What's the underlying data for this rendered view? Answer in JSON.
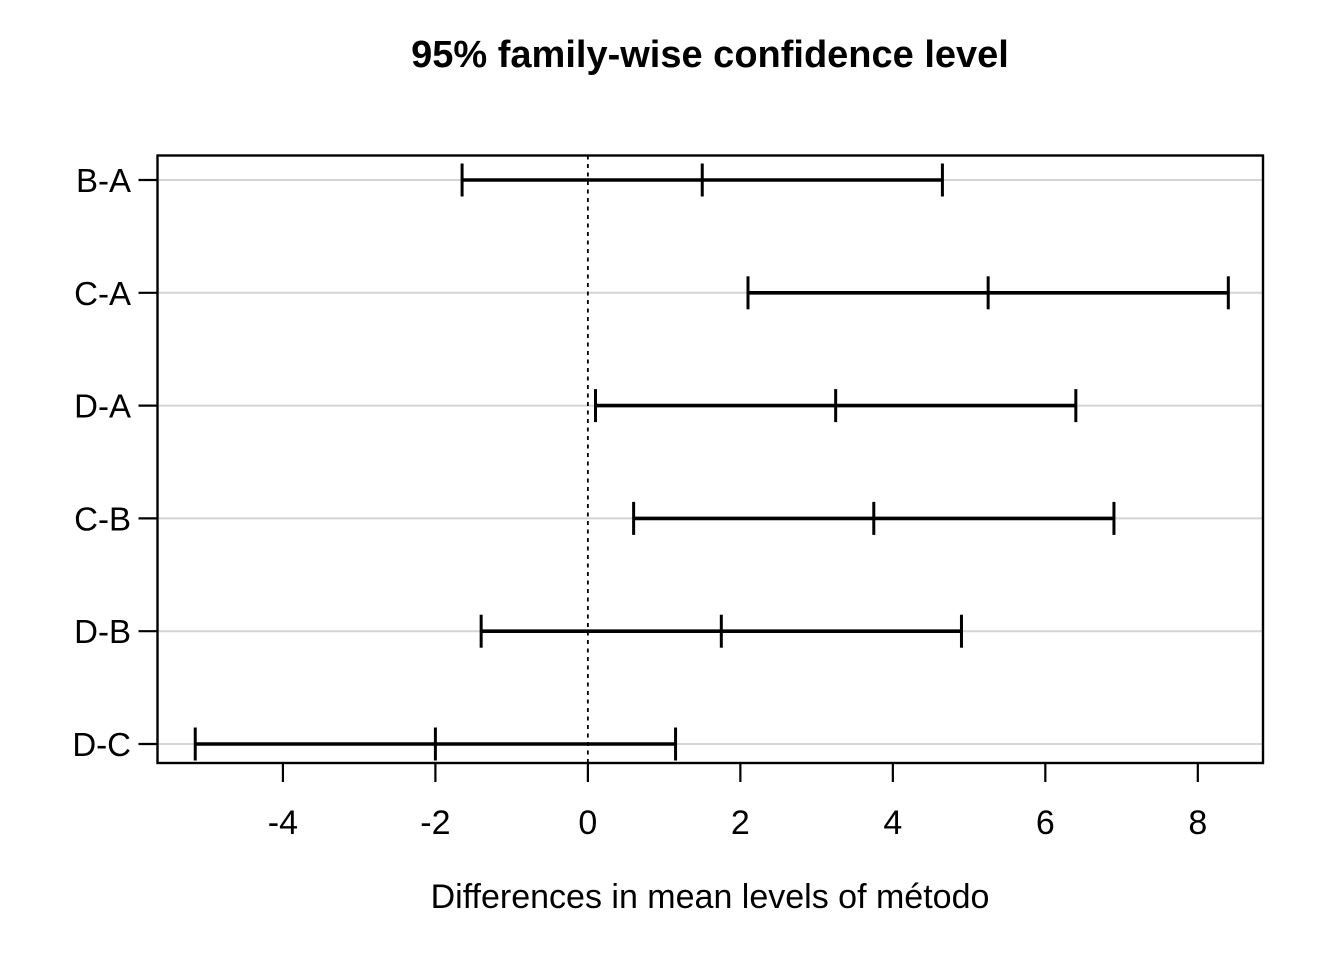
{
  "chart_data": {
    "type": "interval",
    "title": "95% family-wise confidence level",
    "xlabel": "Differences in mean levels of método",
    "ylabel": "",
    "categories": [
      "B-A",
      "C-A",
      "D-A",
      "C-B",
      "D-B",
      "D-C"
    ],
    "comparisons": [
      {
        "label": "B-A",
        "lwr": -1.65,
        "diff": 1.5,
        "upr": 4.65
      },
      {
        "label": "C-A",
        "lwr": 2.1,
        "diff": 5.25,
        "upr": 8.4
      },
      {
        "label": "D-A",
        "lwr": 0.1,
        "diff": 3.25,
        "upr": 6.4
      },
      {
        "label": "C-B",
        "lwr": 0.6,
        "diff": 3.75,
        "upr": 6.9
      },
      {
        "label": "D-B",
        "lwr": -1.4,
        "diff": 1.75,
        "upr": 4.9
      },
      {
        "label": "D-C",
        "lwr": -5.15,
        "diff": -2.0,
        "upr": 1.15
      }
    ],
    "x_ticks": [
      -4,
      -2,
      0,
      2,
      4,
      6,
      8
    ],
    "xlim": [
      -5.645,
      8.855
    ],
    "reference_line_x": 0,
    "grid": "horizontal-light-gray-per-row",
    "legend": "none",
    "colors": {
      "line": "#000000",
      "grid": "#d4d4d4",
      "box": "#000000",
      "background": "#ffffff"
    }
  }
}
